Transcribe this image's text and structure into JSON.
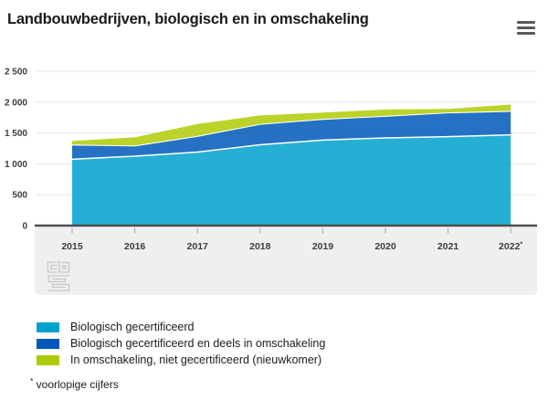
{
  "header": {
    "title": "Landbouwbedrijven, biologisch en in omschakeling"
  },
  "menu": {
    "icon": "hamburger-menu"
  },
  "chart_data": {
    "type": "area",
    "stacked": true,
    "title": "Landbouwbedrijven, biologisch en in omschakeling",
    "categories": [
      "2015",
      "2016",
      "2017",
      "2018",
      "2019",
      "2020",
      "2021",
      "2022*"
    ],
    "series": [
      {
        "name": "Biologisch gecertificeerd",
        "color": "#00a1cd",
        "values": [
          1075,
          1125,
          1190,
          1310,
          1385,
          1420,
          1440,
          1470
        ]
      },
      {
        "name": "Biologisch gecertificeerd en deels in omschakeling",
        "color": "#0058b8",
        "values": [
          230,
          165,
          255,
          330,
          335,
          350,
          385,
          380
        ]
      },
      {
        "name": "In omschakeling, niet gecertificeerd (nieuwkomer)",
        "color": "#afcb05",
        "values": [
          65,
          140,
          200,
          145,
          110,
          110,
          65,
          110
        ]
      }
    ],
    "stacked_totals": [
      1370,
      1430,
      1645,
      1785,
      1830,
      1880,
      1890,
      1960
    ],
    "ylim": [
      0,
      2500
    ],
    "ytick_step": 500,
    "ytick_labels": [
      "0",
      "500",
      "1 000",
      "1 500",
      "2 000",
      "2 500"
    ],
    "grid": "horizontal",
    "legend_position": "bottom-left"
  },
  "footnote": {
    "marker": "*",
    "text": "voorlopige cijfers"
  },
  "branding": {
    "logo": "cbs-logo"
  },
  "colors": {
    "grid": "#e6e6e6",
    "axis": "#4d4d4d",
    "tick": "#a6a6a6",
    "axis_band": "#efefef",
    "tick_label": "#3c3c3c",
    "logo": "#c6c6c6"
  }
}
